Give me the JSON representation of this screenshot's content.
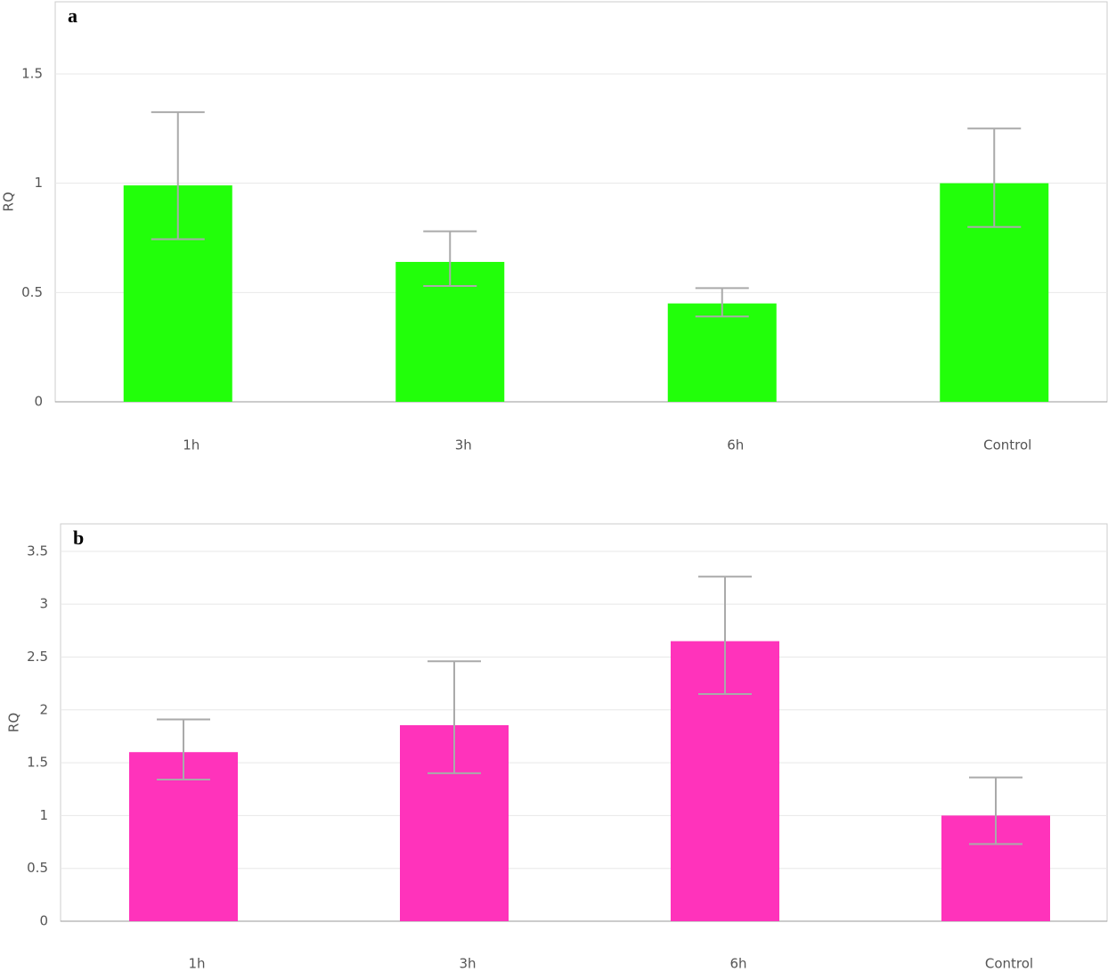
{
  "chart_data": [
    {
      "type": "bar",
      "panel_label": "a",
      "y_label": "RQ",
      "color": "#22ff0a",
      "error_color": "#aaaaaa",
      "grid": true,
      "categories": [
        "1h",
        "3h",
        "6h",
        "Control"
      ],
      "values": [
        0.99,
        0.64,
        0.45,
        1.0
      ],
      "err_upper": [
        1.325,
        0.78,
        0.52,
        1.25
      ],
      "err_lower": [
        0.744,
        0.53,
        0.39,
        0.8
      ],
      "ylim": [
        0,
        1.83
      ],
      "yticks": [
        0,
        0.5,
        1,
        1.5
      ]
    },
    {
      "type": "bar",
      "panel_label": "b",
      "y_label": "RQ",
      "color": "#ff33bb",
      "error_color": "#aaaaaa",
      "grid": true,
      "categories": [
        "1h",
        "3h",
        "6h",
        "Control"
      ],
      "values": [
        1.6,
        1.855,
        2.65,
        1.0
      ],
      "err_upper": [
        1.91,
        2.46,
        3.26,
        1.36
      ],
      "err_lower": [
        1.34,
        1.4,
        2.15,
        0.73
      ],
      "ylim": [
        0,
        3.76
      ],
      "yticks": [
        0,
        0.5,
        1,
        1.5,
        2,
        2.5,
        3,
        3.5
      ]
    }
  ]
}
